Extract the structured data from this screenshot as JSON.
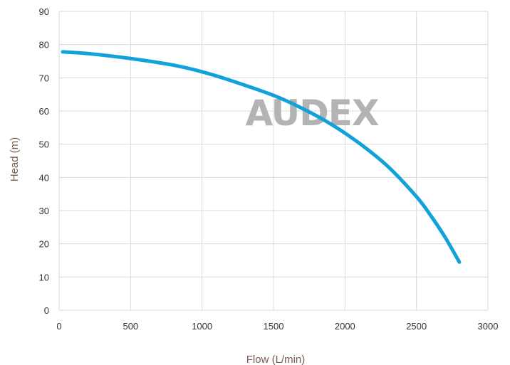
{
  "chart_data": {
    "type": "line",
    "title": "",
    "xlabel": "Flow (L/min)",
    "ylabel": "Head (m)",
    "xlim": [
      0,
      3000
    ],
    "ylim": [
      0,
      90
    ],
    "xticks": [
      "0",
      "500",
      "1000",
      "1500",
      "2000",
      "2500",
      "3000"
    ],
    "yticks": [
      "0",
      "10",
      "20",
      "30",
      "40",
      "50",
      "60",
      "70",
      "80",
      "90"
    ],
    "grid": true,
    "legend": "none",
    "watermark": "AUDEX",
    "series": [
      {
        "color": "#12a2d9",
        "x": [
          25,
          200,
          500,
          800,
          1000,
          1200,
          1500,
          1700,
          1900,
          2100,
          2300,
          2500,
          2600,
          2700,
          2800
        ],
        "y": [
          77.8,
          77.3,
          75.8,
          73.8,
          71.8,
          69.2,
          64.7,
          60.8,
          56.1,
          50.3,
          43.3,
          34.2,
          28.5,
          22.0,
          14.5
        ]
      }
    ]
  },
  "colors": {
    "grid": "#d9d9d9",
    "axis_title": "#7a5a4f",
    "watermark": "#b3b3b3",
    "tick_text": "#333333"
  }
}
